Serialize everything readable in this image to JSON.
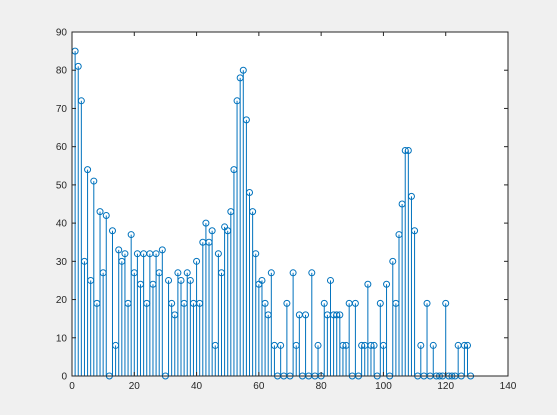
{
  "chart_data": {
    "type": "stem",
    "title": "",
    "xlabel": "",
    "ylabel": "",
    "xlim": [
      0,
      140
    ],
    "ylim": [
      0,
      90
    ],
    "xticks": [
      0,
      20,
      40,
      60,
      80,
      100,
      120,
      140
    ],
    "yticks": [
      0,
      10,
      20,
      30,
      40,
      50,
      60,
      70,
      80,
      90
    ],
    "grid": false,
    "legend": "none",
    "series": [
      {
        "color": "#0072bd",
        "marker": "open-circle",
        "x": [
          1,
          2,
          3,
          4,
          5,
          6,
          7,
          8,
          9,
          10,
          11,
          12,
          13,
          14,
          15,
          16,
          17,
          18,
          19,
          20,
          21,
          22,
          23,
          24,
          25,
          26,
          27,
          28,
          29,
          30,
          31,
          32,
          33,
          34,
          35,
          36,
          37,
          38,
          39,
          40,
          41,
          42,
          43,
          44,
          45,
          46,
          47,
          48,
          49,
          50,
          51,
          52,
          53,
          54,
          55,
          56,
          57,
          58,
          59,
          60,
          61,
          62,
          63,
          64,
          65,
          66,
          67,
          68,
          69,
          70,
          71,
          72,
          73,
          74,
          75,
          76,
          77,
          78,
          79,
          80,
          81,
          82,
          83,
          84,
          85,
          86,
          87,
          88,
          89,
          90,
          91,
          92,
          93,
          94,
          95,
          96,
          97,
          98,
          99,
          100,
          101,
          102,
          103,
          104,
          105,
          106,
          107,
          108,
          109,
          110,
          111,
          112,
          113,
          114,
          115,
          116,
          117,
          118,
          119,
          120,
          121,
          122,
          123,
          124,
          125,
          126,
          127,
          128
        ],
        "y": [
          85,
          81,
          72,
          30,
          54,
          25,
          51,
          19,
          43,
          27,
          42,
          0,
          38,
          8,
          33,
          30,
          32,
          19,
          37,
          27,
          32,
          24,
          32,
          19,
          32,
          24,
          32,
          27,
          33,
          0,
          25,
          19,
          16,
          27,
          25,
          19,
          27,
          25,
          19,
          30,
          19,
          35,
          40,
          35,
          38,
          8,
          32,
          27,
          39,
          38,
          43,
          54,
          72,
          78,
          80,
          67,
          48,
          43,
          32,
          24,
          25,
          19,
          16,
          27,
          8,
          0,
          8,
          0,
          19,
          0,
          27,
          8,
          16,
          0,
          16,
          0,
          27,
          0,
          8,
          0,
          19,
          16,
          25,
          16,
          16,
          16,
          8,
          8,
          19,
          0,
          19,
          0,
          8,
          8,
          24,
          8,
          8,
          0,
          19,
          8,
          24,
          0,
          30,
          19,
          37,
          45,
          59,
          59,
          47,
          38,
          0,
          8,
          0,
          19,
          0,
          8,
          0,
          0,
          0,
          19,
          0,
          0,
          0,
          8,
          0,
          8,
          8,
          0
        ]
      }
    ]
  }
}
